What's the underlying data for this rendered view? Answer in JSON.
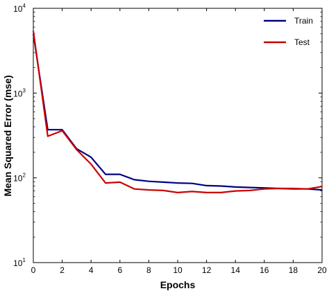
{
  "chart_data": {
    "type": "line",
    "title": "",
    "xlabel": "Epochs",
    "ylabel": "Mean Squared Error  (mse)",
    "y_scale": "log",
    "xlim": [
      0,
      20
    ],
    "ylim": [
      10,
      10000
    ],
    "grid": false,
    "legend_position": "top-right",
    "x_ticks": [
      0,
      2,
      4,
      6,
      8,
      10,
      12,
      14,
      16,
      18,
      20
    ],
    "y_ticks": [
      {
        "base": "10",
        "exp": "1",
        "value": 10
      },
      {
        "base": "10",
        "exp": "2",
        "value": 100
      },
      {
        "base": "10",
        "exp": "3",
        "value": 1000
      },
      {
        "base": "10",
        "exp": "4",
        "value": 10000
      }
    ],
    "x": [
      0,
      1,
      2,
      3,
      4,
      5,
      6,
      7,
      8,
      9,
      10,
      11,
      12,
      13,
      14,
      15,
      16,
      17,
      18,
      19,
      20
    ],
    "series": [
      {
        "name": "Train",
        "color": "#000080",
        "values": [
          5000,
          370,
          370,
          220,
          175,
          110,
          110,
          95,
          91,
          89,
          87,
          86,
          81,
          80,
          78,
          77,
          76,
          75,
          74,
          74,
          72
        ]
      },
      {
        "name": "Test",
        "color": "#cc0000",
        "values": [
          5400,
          310,
          360,
          215,
          145,
          87,
          89,
          74,
          72,
          71,
          67,
          69,
          67,
          67,
          70,
          71,
          74,
          75,
          75,
          74,
          79
        ]
      }
    ]
  }
}
